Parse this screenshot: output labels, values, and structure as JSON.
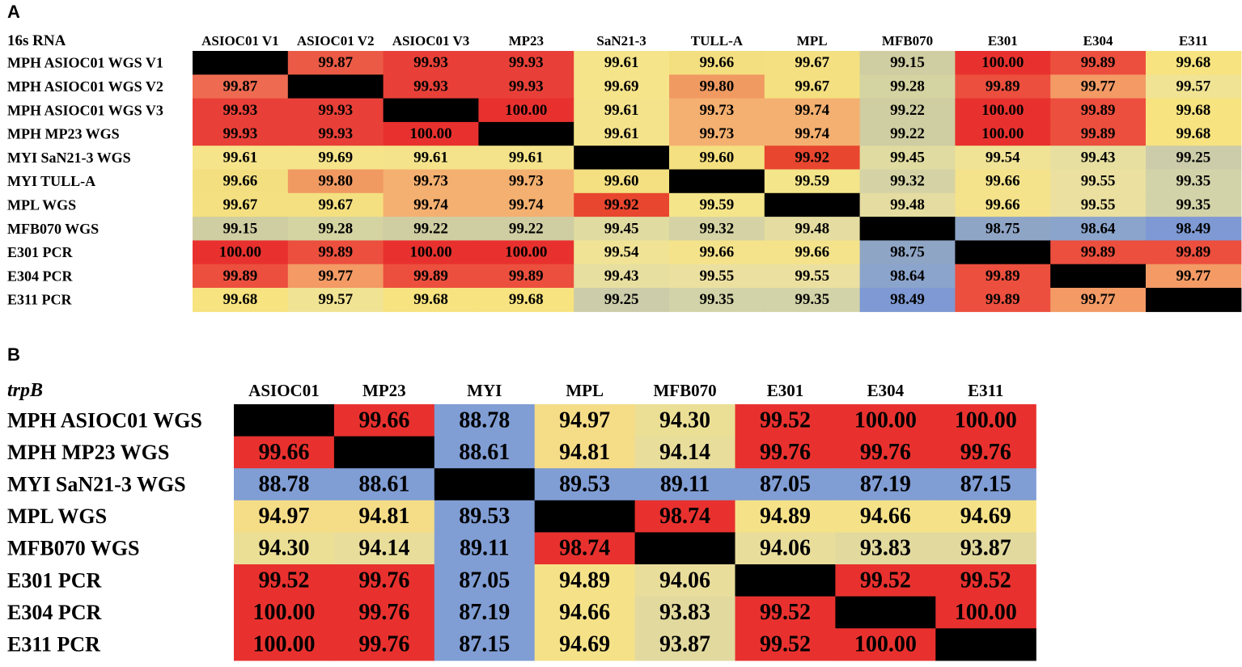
{
  "panels": [
    {
      "letter": "A",
      "chart_data": {
        "type": "heatmap",
        "title": "16s RNA",
        "title_italic": false,
        "columns": [
          "ASIOC01 V1",
          "ASIOC01 V2",
          "ASIOC01 V3",
          "MP23",
          "SaN21-3",
          "TULL-A",
          "MPL",
          "MFB070",
          "E301",
          "E304",
          "E311"
        ],
        "rows": [
          "MPH ASIOC01 WGS V1",
          "MPH ASIOC01 WGS V2",
          "MPH ASIOC01 WGS V3",
          "MPH MP23 WGS",
          "MYI SaN21-3 WGS",
          "MYI TULL-A",
          "MPL WGS",
          "MFB070 WGS",
          "E301 PCR",
          "E304 PCR",
          "E311 PCR"
        ],
        "values": [
          [
            null,
            "99.87",
            "99.93",
            "99.93",
            "99.61",
            "99.66",
            "99.67",
            "99.15",
            "100.00",
            "99.89",
            "99.68"
          ],
          [
            "99.87",
            null,
            "99.93",
            "99.93",
            "99.69",
            "99.80",
            "99.67",
            "99.28",
            "99.89",
            "99.77",
            "99.57"
          ],
          [
            "99.93",
            "99.93",
            null,
            "100.00",
            "99.61",
            "99.73",
            "99.74",
            "99.22",
            "100.00",
            "99.89",
            "99.68"
          ],
          [
            "99.93",
            "99.93",
            "100.00",
            null,
            "99.61",
            "99.73",
            "99.74",
            "99.22",
            "100.00",
            "99.89",
            "99.68"
          ],
          [
            "99.61",
            "99.69",
            "99.61",
            "99.61",
            null,
            "99.60",
            "99.92",
            "99.45",
            "99.54",
            "99.43",
            "99.25"
          ],
          [
            "99.66",
            "99.80",
            "99.73",
            "99.73",
            "99.60",
            null,
            "99.59",
            "99.32",
            "99.66",
            "99.55",
            "99.35"
          ],
          [
            "99.67",
            "99.67",
            "99.74",
            "99.74",
            "99.92",
            "99.59",
            null,
            "99.48",
            "99.66",
            "99.55",
            "99.35"
          ],
          [
            "99.15",
            "99.28",
            "99.22",
            "99.22",
            "99.45",
            "99.32",
            "99.48",
            null,
            "98.75",
            "98.64",
            "98.49"
          ],
          [
            "100.00",
            "99.89",
            "100.00",
            "100.00",
            "99.54",
            "99.66",
            "99.66",
            "98.75",
            null,
            "99.89",
            "99.89"
          ],
          [
            "99.89",
            "99.77",
            "99.89",
            "99.89",
            "99.43",
            "99.55",
            "99.55",
            "98.64",
            "99.89",
            null,
            "99.77"
          ],
          [
            "99.68",
            "99.57",
            "99.68",
            "99.68",
            "99.25",
            "99.35",
            "99.35",
            "98.49",
            "99.89",
            "99.77",
            null
          ]
        ],
        "colors": [
          [
            null,
            "#ea5a45",
            "#e84038",
            "#e84038",
            "#f6e48a",
            "#f4df80",
            "#f4e080",
            "#cfcda2",
            "#e8312e",
            "#ec4f3e",
            "#f7e37f"
          ],
          [
            "#ee6b51",
            null,
            "#e84038",
            "#e84038",
            "#f6e48a",
            "#f09a62",
            "#f4e080",
            "#d4d3a2",
            "#ec4f3e",
            "#f39a65",
            "#f0e393"
          ],
          [
            "#e84038",
            "#e84038",
            null,
            "#e8312e",
            "#f4e38a",
            "#f4b070",
            "#f4b070",
            "#cfcda2",
            "#e8312e",
            "#ec4f3e",
            "#f7e37f"
          ],
          [
            "#e84038",
            "#e84038",
            "#e8312e",
            null,
            "#f4e38a",
            "#f4b070",
            "#f4b070",
            "#cfcda2",
            "#e8312e",
            "#ec4f3e",
            "#f7e37f"
          ],
          [
            "#f6e48a",
            "#f6e48a",
            "#f4e38a",
            "#f4e38a",
            null,
            "#f4e080",
            "#e8462f",
            "#e0dba0",
            "#f0e396",
            "#e7dfa0",
            "#ccccaa"
          ],
          [
            "#f4df80",
            "#f09a62",
            "#f4b070",
            "#f4b070",
            "#f4e080",
            null,
            "#f4e58a",
            "#d5d3a5",
            "#f4e38a",
            "#ebe0a0",
            "#d3d3a9"
          ],
          [
            "#f4e080",
            "#f4e080",
            "#f4b070",
            "#f4b070",
            "#e8462f",
            "#f4e58a",
            null,
            "#e4dca0",
            "#f4e38a",
            "#ebe0a0",
            "#d3d3a9"
          ],
          [
            "#cfcda2",
            "#d4d3a2",
            "#cfcda2",
            "#cfcda2",
            "#e0dba0",
            "#d5d3a5",
            "#e4dca0",
            null,
            "#8fa5c6",
            "#8ba4cc",
            "#7e99d3"
          ],
          [
            "#e8312e",
            "#ec4f3e",
            "#e8312e",
            "#e8312e",
            "#f0e396",
            "#f4e38a",
            "#f4e38a",
            "#8fa5c6",
            null,
            "#ec4f3e",
            "#ec4f3e"
          ],
          [
            "#ec4f3e",
            "#f39a65",
            "#ec4f3e",
            "#ec4f3e",
            "#e7dfa0",
            "#ebe0a0",
            "#ebe0a0",
            "#8ba4cc",
            "#ec4f3e",
            null,
            "#f39a65"
          ],
          [
            "#f7e37f",
            "#f0e393",
            "#f7e37f",
            "#f7e37f",
            "#ccccaa",
            "#d3d3a9",
            "#d3d3a9",
            "#7e99d3",
            "#ec4f3e",
            "#f39a65",
            null
          ]
        ]
      }
    },
    {
      "letter": "B",
      "chart_data": {
        "type": "heatmap",
        "title": "trpB",
        "title_italic": true,
        "columns": [
          "ASIOC01",
          "MP23",
          "MYI",
          "MPL",
          "MFB070",
          "E301",
          "E304",
          "E311"
        ],
        "rows": [
          "MPH ASIOC01 WGS",
          "MPH MP23 WGS",
          "MYI SaN21-3 WGS",
          "MPL WGS",
          "MFB070 WGS",
          "E301 PCR",
          "E304 PCR",
          "E311 PCR"
        ],
        "values": [
          [
            null,
            "99.66",
            "88.78",
            "94.97",
            "94.30",
            "99.52",
            "100.00",
            "100.00"
          ],
          [
            "99.66",
            null,
            "88.61",
            "94.81",
            "94.14",
            "99.76",
            "99.76",
            "99.76"
          ],
          [
            "88.78",
            "88.61",
            null,
            "89.53",
            "89.11",
            "87.05",
            "87.19",
            "87.15"
          ],
          [
            "94.97",
            "94.81",
            "89.53",
            null,
            "98.74",
            "94.89",
            "94.66",
            "94.69"
          ],
          [
            "94.30",
            "94.14",
            "89.11",
            "98.74",
            null,
            "94.06",
            "93.83",
            "93.87"
          ],
          [
            "99.52",
            "99.76",
            "87.05",
            "94.89",
            "94.06",
            null,
            "99.52",
            "99.52"
          ],
          [
            "100.00",
            "99.76",
            "87.19",
            "94.66",
            "93.83",
            "99.52",
            null,
            "100.00"
          ],
          [
            "100.00",
            "99.76",
            "87.15",
            "94.69",
            "93.87",
            "99.52",
            "100.00",
            null
          ]
        ],
        "colors": [
          [
            null,
            "#e8312e",
            "#809dd4",
            "#f5dc86",
            "#ebdf95",
            "#e8312e",
            "#e8312e",
            "#e8312e"
          ],
          [
            "#e8312e",
            null,
            "#809dd4",
            "#f5dc86",
            "#e8dd9a",
            "#e8312e",
            "#e8312e",
            "#e8312e"
          ],
          [
            "#809dd4",
            "#809dd4",
            null,
            "#809dd4",
            "#809dd4",
            "#809dd4",
            "#809dd4",
            "#809dd4"
          ],
          [
            "#f5dc86",
            "#f5dc86",
            "#809dd4",
            null,
            "#e8312e",
            "#f5e288",
            "#f5e288",
            "#f5e288"
          ],
          [
            "#ebdf95",
            "#e8dd9a",
            "#809dd4",
            "#e8312e",
            null,
            "#e8dd9a",
            "#e2d99e",
            "#e2d99e"
          ],
          [
            "#e8312e",
            "#e8312e",
            "#809dd4",
            "#f5e288",
            "#e8dd9a",
            null,
            "#e8312e",
            "#e8312e"
          ],
          [
            "#e8312e",
            "#e8312e",
            "#809dd4",
            "#f5e288",
            "#e2d99e",
            "#e8312e",
            null,
            "#e8312e"
          ],
          [
            "#e8312e",
            "#e8312e",
            "#809dd4",
            "#f5e288",
            "#e2d99e",
            "#e8312e",
            "#e8312e",
            null
          ]
        ]
      }
    }
  ]
}
